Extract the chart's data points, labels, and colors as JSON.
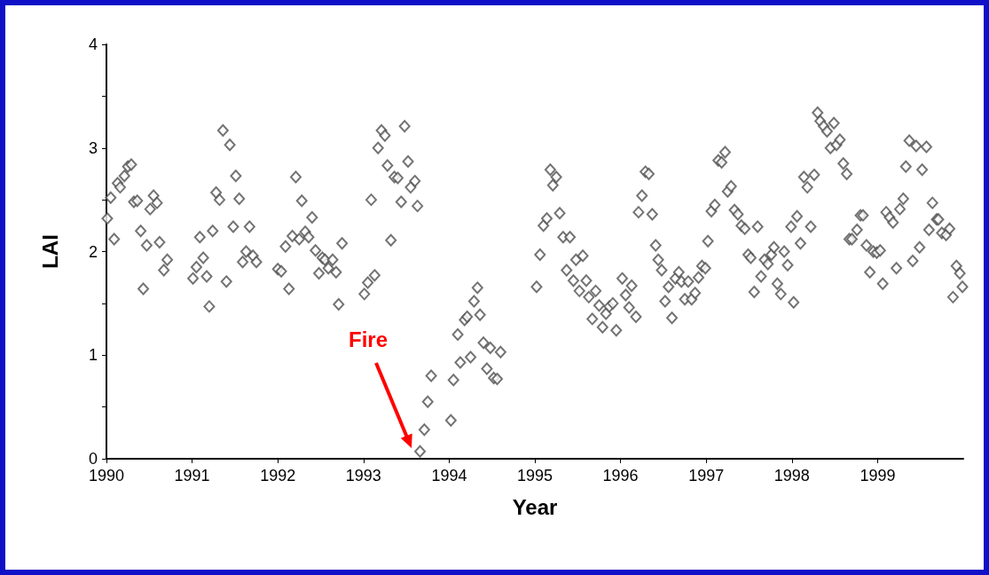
{
  "chart_data": {
    "type": "scatter",
    "xlabel": "Year",
    "ylabel": "LAI",
    "marker": "diamond",
    "xlim": [
      1990,
      2000
    ],
    "xticks": [
      1990,
      1991,
      1992,
      1993,
      1994,
      1995,
      1996,
      1997,
      1998,
      1999
    ],
    "ylim": [
      0,
      4
    ],
    "yticks": [
      0,
      {
        "value": 0.5,
        "label": null
      },
      1,
      {
        "value": 1.5,
        "label": null
      },
      2,
      {
        "value": 2.5,
        "label": null
      },
      3,
      {
        "value": 3.5,
        "label": null
      },
      4
    ],
    "annotations": [
      "Fire"
    ],
    "series": [
      {
        "color": "#505050",
        "x": [
          1990.01,
          1990.05,
          1990.09,
          1990.13,
          1990.16,
          1990.21,
          1990.25,
          1990.29,
          1990.32,
          1990.36,
          1990.4,
          1990.43,
          1990.47,
          1990.51,
          1990.55,
          1990.59,
          1990.62,
          1990.67,
          1990.71,
          1991.01,
          1991.05,
          1991.09,
          1991.13,
          1991.17,
          1991.2,
          1991.24,
          1991.28,
          1991.32,
          1991.36,
          1991.4,
          1991.44,
          1991.48,
          1991.51,
          1991.55,
          1991.59,
          1991.63,
          1991.67,
          1991.71,
          1991.75,
          1992.0,
          1992.04,
          1992.09,
          1992.13,
          1992.17,
          1992.21,
          1992.25,
          1992.28,
          1992.32,
          1992.36,
          1992.4,
          1992.44,
          1992.48,
          1992.52,
          1992.55,
          1992.59,
          1992.64,
          1992.68,
          1992.71,
          1992.75,
          1993.01,
          1993.05,
          1993.09,
          1993.13,
          1993.17,
          1993.21,
          1993.25,
          1993.28,
          1993.32,
          1993.36,
          1993.4,
          1993.44,
          1993.48,
          1993.52,
          1993.55,
          1993.6,
          1993.63,
          1993.66,
          1993.71,
          1993.75,
          1993.79,
          1994.02,
          1994.05,
          1994.1,
          1994.13,
          1994.18,
          1994.21,
          1994.25,
          1994.29,
          1994.33,
          1994.36,
          1994.4,
          1994.44,
          1994.48,
          1994.52,
          1994.56,
          1994.6,
          1995.02,
          1995.06,
          1995.1,
          1995.14,
          1995.18,
          1995.21,
          1995.25,
          1995.29,
          1995.33,
          1995.37,
          1995.41,
          1995.45,
          1995.48,
          1995.52,
          1995.56,
          1995.6,
          1995.63,
          1995.67,
          1995.71,
          1995.75,
          1995.79,
          1995.83,
          1995.87,
          1995.91,
          1995.95,
          1996.02,
          1996.06,
          1996.1,
          1996.13,
          1996.18,
          1996.21,
          1996.25,
          1996.29,
          1996.33,
          1996.37,
          1996.41,
          1996.44,
          1996.48,
          1996.52,
          1996.56,
          1996.6,
          1996.64,
          1996.68,
          1996.71,
          1996.75,
          1996.79,
          1996.83,
          1996.87,
          1996.91,
          1996.95,
          1996.99,
          1997.02,
          1997.06,
          1997.1,
          1997.14,
          1997.18,
          1997.22,
          1997.25,
          1997.29,
          1997.33,
          1997.37,
          1997.41,
          1997.45,
          1997.49,
          1997.52,
          1997.56,
          1997.6,
          1997.64,
          1997.68,
          1997.72,
          1997.76,
          1997.79,
          1997.83,
          1997.87,
          1997.91,
          1997.95,
          1997.99,
          1998.02,
          1998.06,
          1998.1,
          1998.14,
          1998.18,
          1998.22,
          1998.26,
          1998.3,
          1998.33,
          1998.37,
          1998.41,
          1998.45,
          1998.49,
          1998.52,
          1998.56,
          1998.6,
          1998.64,
          1998.67,
          1998.7,
          1998.76,
          1998.8,
          1998.83,
          1998.87,
          1998.91,
          1998.95,
          1998.99,
          1999.03,
          1999.06,
          1999.1,
          1999.14,
          1999.18,
          1999.22,
          1999.26,
          1999.3,
          1999.33,
          1999.37,
          1999.41,
          1999.45,
          1999.49,
          1999.52,
          1999.57,
          1999.6,
          1999.64,
          1999.69,
          1999.71,
          1999.75,
          1999.8,
          1999.84,
          1999.88,
          1999.92,
          1999.96,
          1999.99
        ],
        "values": [
          2.32,
          2.52,
          2.12,
          2.66,
          2.62,
          2.73,
          2.82,
          2.84,
          2.48,
          2.49,
          2.2,
          1.64,
          2.06,
          2.41,
          2.54,
          2.47,
          2.09,
          1.82,
          1.92,
          1.74,
          1.85,
          2.14,
          1.94,
          1.76,
          1.47,
          2.2,
          2.57,
          2.5,
          3.17,
          1.71,
          3.03,
          2.24,
          2.73,
          2.51,
          1.9,
          2.0,
          2.24,
          1.96,
          1.9,
          1.83,
          1.81,
          2.05,
          1.64,
          2.15,
          2.72,
          2.12,
          2.49,
          2.19,
          2.14,
          2.33,
          2.01,
          1.79,
          1.94,
          1.92,
          1.84,
          1.92,
          1.8,
          1.49,
          2.08,
          1.59,
          1.7,
          2.5,
          1.77,
          3.0,
          3.17,
          3.12,
          2.83,
          2.11,
          2.72,
          2.71,
          2.48,
          3.21,
          2.87,
          2.62,
          2.68,
          2.44,
          0.07,
          0.28,
          0.55,
          0.8,
          0.37,
          0.76,
          1.2,
          0.93,
          1.34,
          1.37,
          0.98,
          1.52,
          1.65,
          1.39,
          1.12,
          0.87,
          1.07,
          0.78,
          0.77,
          1.03,
          1.66,
          1.97,
          2.25,
          2.32,
          2.79,
          2.64,
          2.72,
          2.37,
          2.14,
          1.82,
          2.14,
          1.72,
          1.92,
          1.62,
          1.96,
          1.72,
          1.56,
          1.35,
          1.62,
          1.48,
          1.27,
          1.4,
          1.47,
          1.5,
          1.24,
          1.74,
          1.58,
          1.46,
          1.67,
          1.37,
          2.38,
          2.54,
          2.77,
          2.75,
          2.36,
          2.06,
          1.92,
          1.82,
          1.52,
          1.66,
          1.36,
          1.74,
          1.8,
          1.71,
          1.54,
          1.71,
          1.54,
          1.6,
          1.75,
          1.86,
          1.84,
          2.1,
          2.39,
          2.45,
          2.88,
          2.86,
          2.96,
          2.58,
          2.63,
          2.4,
          2.36,
          2.25,
          2.22,
          1.97,
          1.94,
          1.61,
          2.24,
          1.76,
          1.92,
          1.88,
          1.97,
          2.04,
          1.69,
          1.59,
          2.0,
          1.87,
          2.24,
          1.51,
          2.34,
          2.08,
          2.72,
          2.62,
          2.24,
          2.74,
          3.34,
          3.26,
          3.21,
          3.16,
          3.0,
          3.24,
          3.03,
          3.08,
          2.85,
          2.75,
          2.12,
          2.12,
          2.21,
          2.35,
          2.35,
          2.06,
          1.8,
          2.0,
          1.99,
          2.01,
          1.69,
          2.38,
          2.33,
          2.28,
          1.84,
          2.41,
          2.51,
          2.82,
          3.07,
          1.91,
          3.02,
          2.04,
          2.79,
          3.01,
          2.21,
          2.47,
          2.31,
          2.31,
          2.18,
          2.16,
          2.22,
          1.56,
          1.86,
          1.79,
          1.66
        ]
      }
    ]
  }
}
